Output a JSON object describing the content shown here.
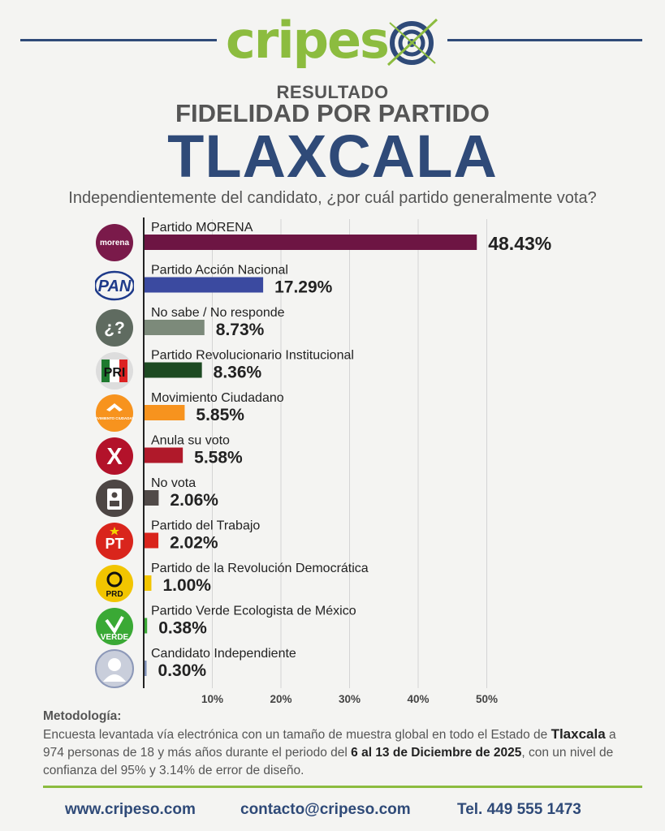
{
  "brand": {
    "logo_part1": "cripes",
    "logo_part2": "o"
  },
  "header": {
    "kicker": "RESULTADO",
    "title": "FIDELIDAD POR PARTIDO",
    "state": "TLAXCALA",
    "question": "Independientemente del candidato, ¿por cuál partido generalmente vota?"
  },
  "colors": {
    "brand_blue": "#2f4a78",
    "brand_green": "#8cbc3f"
  },
  "chart_data": {
    "type": "bar",
    "orientation": "horizontal",
    "title": "FIDELIDAD POR PARTIDO",
    "xlim": [
      0,
      50
    ],
    "x_ticks": [
      "10%",
      "20%",
      "30%",
      "40%",
      "50%"
    ],
    "grid": true,
    "categories": [
      "Partido MORENA",
      "Partido Acción Nacional",
      "No sabe / No responde",
      "Partido Revolucionario Institucional",
      "Movimiento Ciudadano",
      "Anula su voto",
      "No vota",
      "Partido del Trabajo",
      "Partido de la Revolución Democrática",
      "Partido Verde Ecologista de México",
      "Candidato Independiente"
    ],
    "values": [
      48.43,
      17.29,
      8.73,
      8.36,
      5.85,
      5.58,
      2.06,
      2.02,
      1.0,
      0.38,
      0.3
    ],
    "value_labels": [
      "48.43%",
      "17.29%",
      "8.73%",
      "8.36%",
      "5.85%",
      "5.58%",
      "2.06%",
      "2.02%",
      "1.00%",
      "0.38%",
      "0.30%"
    ],
    "bar_colors": [
      "#6d1543",
      "#3b4aa0",
      "#7c8a7a",
      "#1d4a22",
      "#f7931e",
      "#b0192a",
      "#514a48",
      "#d9251c",
      "#f2c500",
      "#3aa935",
      "#7e8fb6"
    ],
    "icons": [
      "morena-logo-icon",
      "pan-logo-icon",
      "question-icon",
      "pri-logo-icon",
      "mc-logo-icon",
      "x-mark-icon",
      "ballot-box-icon",
      "pt-logo-icon",
      "prd-logo-icon",
      "verde-logo-icon",
      "person-icon"
    ],
    "icon_texts": [
      "morena",
      "PAN",
      "¿?",
      "PRI",
      "MOVIMIENTO CIUDADANO",
      "X",
      "",
      "PT",
      "PRD",
      "VERDE",
      ""
    ]
  },
  "methodology": {
    "title": "Metodología:",
    "text1": "Encuesta levantada vía electrónica con un tamaño de muestra global en todo el Estado de ",
    "state": "Tlaxcala",
    "text2": " a 974 personas de 18 y más años durante el periodo del ",
    "dates": "6 al 13 de Diciembre de 2025",
    "text3": ", con un nivel de confianza del 95% y 3.14% de error de diseño."
  },
  "footer": {
    "website": "www.cripeso.com",
    "email": "contacto@cripeso.com",
    "phone": "Tel. 449 555 1473"
  }
}
